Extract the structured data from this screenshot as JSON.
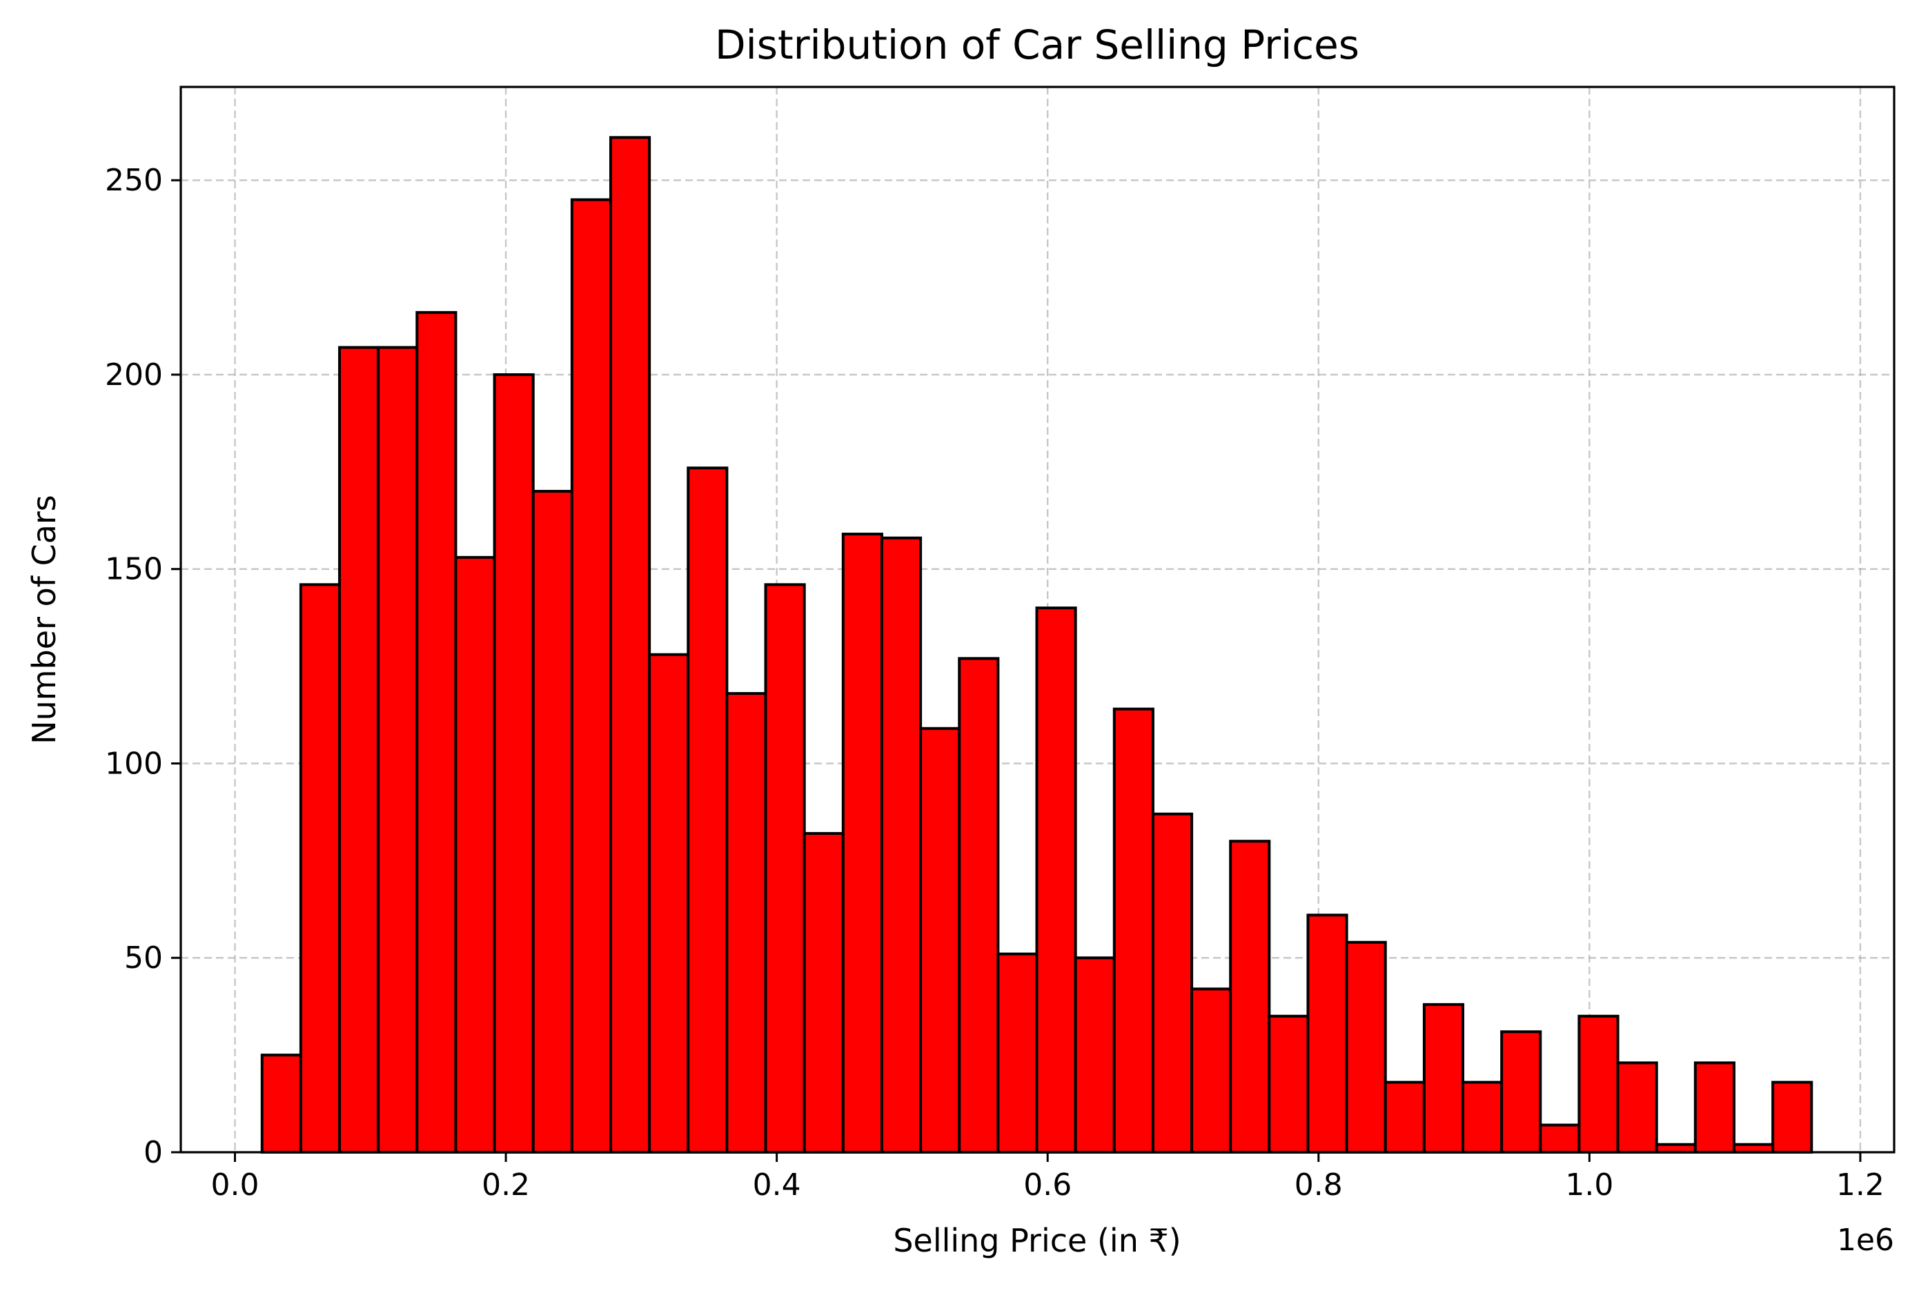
{
  "chart_data": {
    "type": "bar",
    "title": "Distribution of Car Selling Prices",
    "xlabel": "Selling Price (in ₹)",
    "ylabel": "Number of Cars",
    "x_offset_label": "1e6",
    "bar_color": "#ff0000",
    "edge_color": "#000000",
    "grid": true,
    "xlim": [
      -0.04,
      1.225
    ],
    "ylim": [
      0,
      274
    ],
    "xticks": [
      0.0,
      0.2,
      0.4,
      0.6,
      0.8,
      1.0,
      1.2
    ],
    "xtick_labels": [
      "0.0",
      "0.2",
      "0.4",
      "0.6",
      "0.8",
      "1.0",
      "1.2"
    ],
    "yticks": [
      0,
      50,
      100,
      150,
      200,
      250
    ],
    "ytick_labels": [
      "0",
      "50",
      "100",
      "150",
      "200",
      "250"
    ],
    "bin_start": 0.02,
    "bin_width": 0.0286,
    "values": [
      25,
      146,
      207,
      207,
      216,
      153,
      200,
      170,
      245,
      261,
      128,
      176,
      118,
      146,
      82,
      159,
      158,
      109,
      127,
      51,
      140,
      50,
      114,
      87,
      42,
      80,
      35,
      61,
      54,
      18,
      38,
      18,
      31,
      7,
      35,
      23,
      2,
      23,
      2,
      18
    ]
  }
}
